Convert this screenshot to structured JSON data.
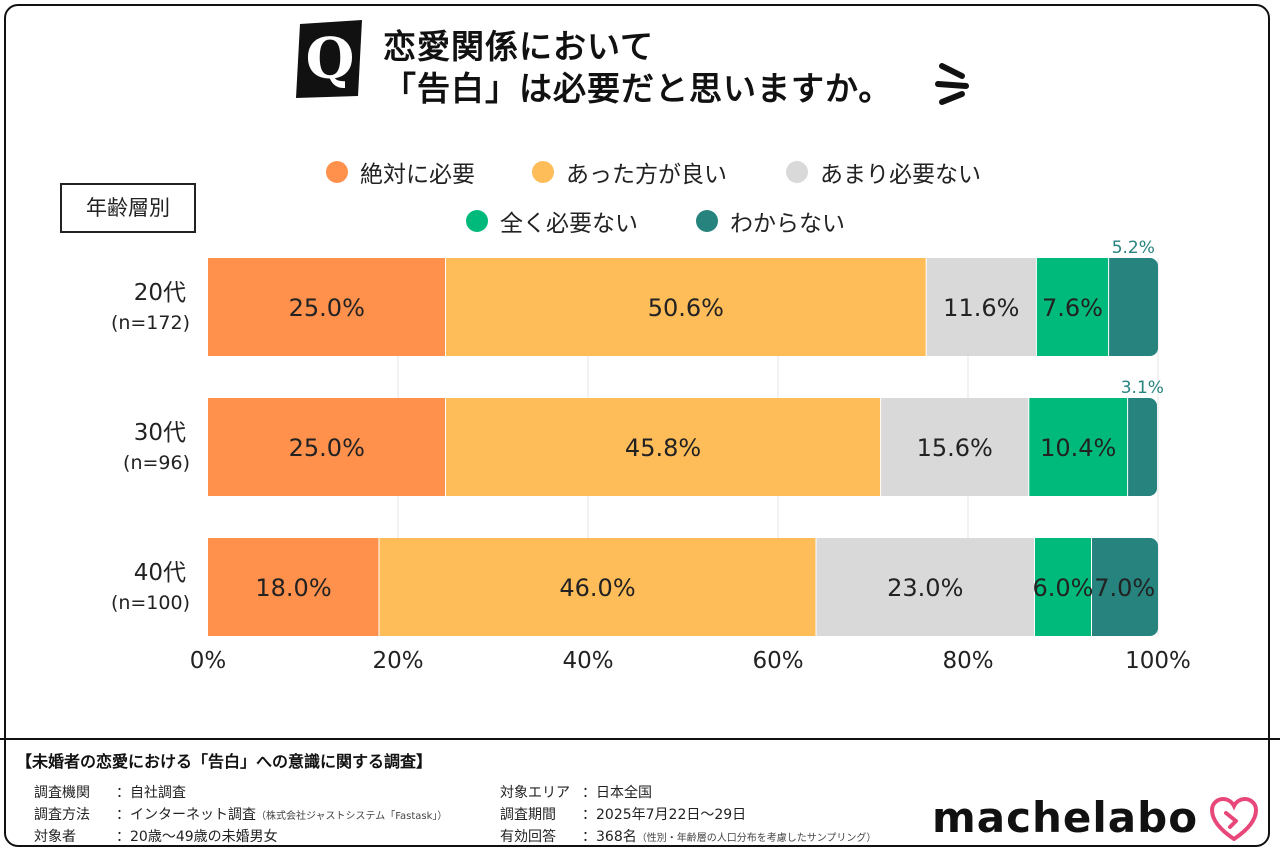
{
  "question_mark": "Q",
  "title_lines": [
    "恋愛関係において",
    "「告白」は必要だと思いますか。"
  ],
  "segment_label": "年齢層別",
  "colors": {
    "absolutely_needed": "#FF914D",
    "better_to_have": "#FFBD59",
    "not_very_needed": "#D9D9D9",
    "not_needed_at_all": "#00BA7C",
    "dont_know": "#26837E",
    "small_label": "#26837E"
  },
  "chart_data": {
    "type": "bar",
    "orientation": "horizontal",
    "stacked": true,
    "categories": [
      "20代",
      "30代",
      "40代"
    ],
    "category_sublabels": [
      "(n=172)",
      "(n=96)",
      "(n=100)"
    ],
    "series": [
      {
        "name": "絶対に必要",
        "color_key": "absolutely_needed",
        "values": [
          25.0,
          25.0,
          18.0
        ],
        "labels": [
          "25.0%",
          "25.0%",
          "18.0%"
        ]
      },
      {
        "name": "あった方が良い",
        "color_key": "better_to_have",
        "values": [
          50.6,
          45.8,
          46.0
        ],
        "labels": [
          "50.6%",
          "45.8%",
          "46.0%"
        ]
      },
      {
        "name": "あまり必要ない",
        "color_key": "not_very_needed",
        "values": [
          11.6,
          15.6,
          23.0
        ],
        "labels": [
          "11.6%",
          "15.6%",
          "23.0%"
        ]
      },
      {
        "name": "全く必要ない",
        "color_key": "not_needed_at_all",
        "values": [
          7.6,
          10.4,
          6.0
        ],
        "labels": [
          "7.6%",
          "10.4%",
          "6.0%"
        ]
      },
      {
        "name": "わからない",
        "color_key": "dont_know",
        "values": [
          5.2,
          3.1,
          7.0
        ],
        "labels": [
          "5.2%",
          "3.1%",
          "7.0%"
        ]
      }
    ],
    "xlim": [
      0,
      100
    ],
    "xticks": [
      0,
      20,
      40,
      60,
      80,
      100
    ],
    "xtick_labels": [
      "0%",
      "20%",
      "40%",
      "60%",
      "80%",
      "100%"
    ],
    "grid": "vertical",
    "legend": "top"
  },
  "footer": {
    "title": "【未婚者の恋愛における「告白」への意識に関する調査】",
    "separator": "：",
    "left": [
      {
        "label": "調査機関",
        "value": "自社調査",
        "note": ""
      },
      {
        "label": "調査方法",
        "value": "インターネット調査",
        "note": "（株式会社ジャストシステム「Fastask」）"
      },
      {
        "label": "対象者",
        "value": "20歳〜49歳の未婚男女",
        "note": ""
      }
    ],
    "right": [
      {
        "label": "対象エリア",
        "value": "日本全国",
        "note": ""
      },
      {
        "label": "調査期間",
        "value": "2025年7月22日〜29日",
        "note": ""
      },
      {
        "label": "有効回答",
        "value": "368名",
        "note": "（性別・年齢層の人口分布を考慮したサンプリング）"
      }
    ]
  },
  "logo_text": "machelabo"
}
